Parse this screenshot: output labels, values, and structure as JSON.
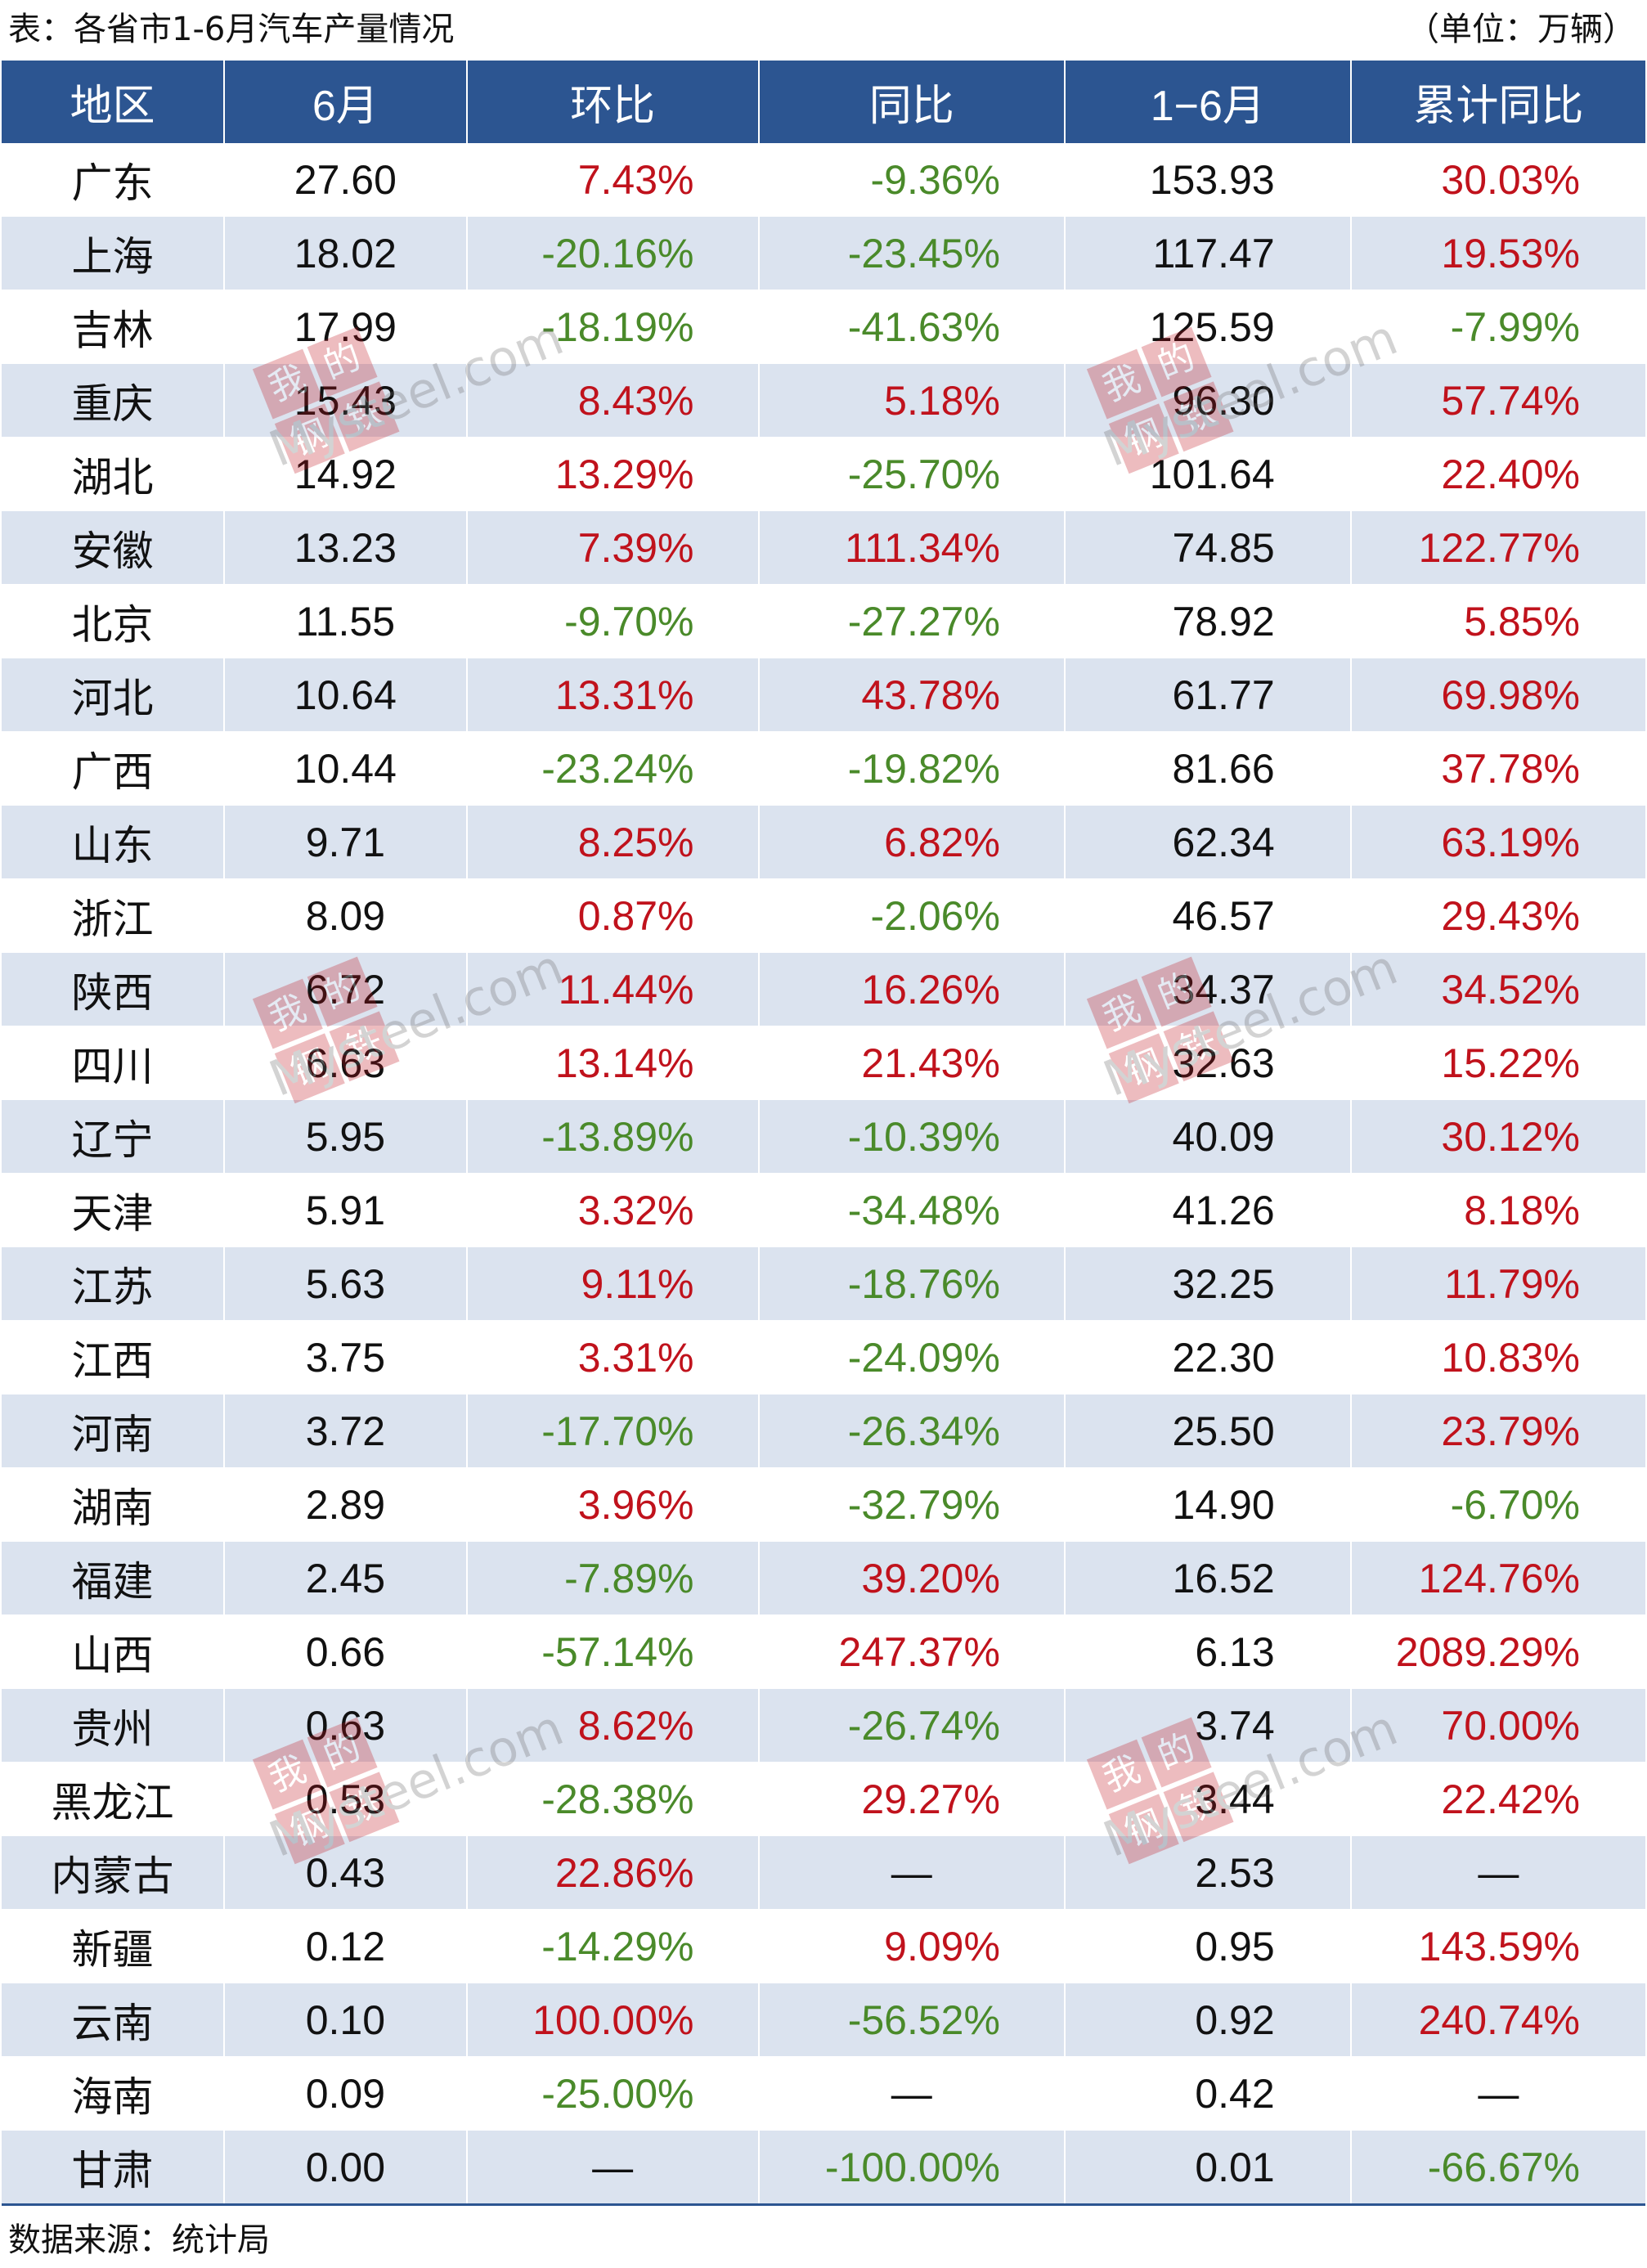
{
  "caption": {
    "title": "表：各省市1-6月汽车产量情况",
    "unit": "（单位：万辆）"
  },
  "headers": [
    "地区",
    "6月",
    "环比",
    "同比",
    "1−6月",
    "累计同比"
  ],
  "rows": [
    [
      "广东",
      "27.60",
      "7.43%",
      "-9.36%",
      "153.93",
      "30.03%"
    ],
    [
      "上海",
      "18.02",
      "-20.16%",
      "-23.45%",
      "117.47",
      "19.53%"
    ],
    [
      "吉林",
      "17.99",
      "-18.19%",
      "-41.63%",
      "125.59",
      "-7.99%"
    ],
    [
      "重庆",
      "15.43",
      "8.43%",
      "5.18%",
      "96.30",
      "57.74%"
    ],
    [
      "湖北",
      "14.92",
      "13.29%",
      "-25.70%",
      "101.64",
      "22.40%"
    ],
    [
      "安徽",
      "13.23",
      "7.39%",
      "111.34%",
      "74.85",
      "122.77%"
    ],
    [
      "北京",
      "11.55",
      "-9.70%",
      "-27.27%",
      "78.92",
      "5.85%"
    ],
    [
      "河北",
      "10.64",
      "13.31%",
      "43.78%",
      "61.77",
      "69.98%"
    ],
    [
      "广西",
      "10.44",
      "-23.24%",
      "-19.82%",
      "81.66",
      "37.78%"
    ],
    [
      "山东",
      "9.71",
      "8.25%",
      "6.82%",
      "62.34",
      "63.19%"
    ],
    [
      "浙江",
      "8.09",
      "0.87%",
      "-2.06%",
      "46.57",
      "29.43%"
    ],
    [
      "陕西",
      "6.72",
      "11.44%",
      "16.26%",
      "34.37",
      "34.52%"
    ],
    [
      "四川",
      "6.63",
      "13.14%",
      "21.43%",
      "32.63",
      "15.22%"
    ],
    [
      "辽宁",
      "5.95",
      "-13.89%",
      "-10.39%",
      "40.09",
      "30.12%"
    ],
    [
      "天津",
      "5.91",
      "3.32%",
      "-34.48%",
      "41.26",
      "8.18%"
    ],
    [
      "江苏",
      "5.63",
      "9.11%",
      "-18.76%",
      "32.25",
      "11.79%"
    ],
    [
      "江西",
      "3.75",
      "3.31%",
      "-24.09%",
      "22.30",
      "10.83%"
    ],
    [
      "河南",
      "3.72",
      "-17.70%",
      "-26.34%",
      "25.50",
      "23.79%"
    ],
    [
      "湖南",
      "2.89",
      "3.96%",
      "-32.79%",
      "14.90",
      "-6.70%"
    ],
    [
      "福建",
      "2.45",
      "-7.89%",
      "39.20%",
      "16.52",
      "124.76%"
    ],
    [
      "山西",
      "0.66",
      "-57.14%",
      "247.37%",
      "6.13",
      "2089.29%"
    ],
    [
      "贵州",
      "0.63",
      "8.62%",
      "-26.74%",
      "3.74",
      "70.00%"
    ],
    [
      "黑龙江",
      "0.53",
      "-28.38%",
      "29.27%",
      "3.44",
      "22.42%"
    ],
    [
      "内蒙古",
      "0.43",
      "22.86%",
      "—",
      "2.53",
      "—"
    ],
    [
      "新疆",
      "0.12",
      "-14.29%",
      "9.09%",
      "0.95",
      "143.59%"
    ],
    [
      "云南",
      "0.10",
      "100.00%",
      "-56.52%",
      "0.92",
      "240.74%"
    ],
    [
      "海南",
      "0.09",
      "-25.00%",
      "—",
      "0.42",
      "—"
    ],
    [
      "甘肃",
      "0.00",
      "—",
      "-100.00%",
      "0.01",
      "-66.67%"
    ]
  ],
  "footer": "数据来源：统计局",
  "watermark": {
    "logo_chars": [
      "我",
      "的",
      "钢",
      "铁"
    ],
    "brand": "Mysteel.com"
  },
  "colors": {
    "header_bg": "#2c5591",
    "stripe": "#dbe3ef",
    "positive": "#c0121c",
    "negative": "#4a8a2a"
  }
}
